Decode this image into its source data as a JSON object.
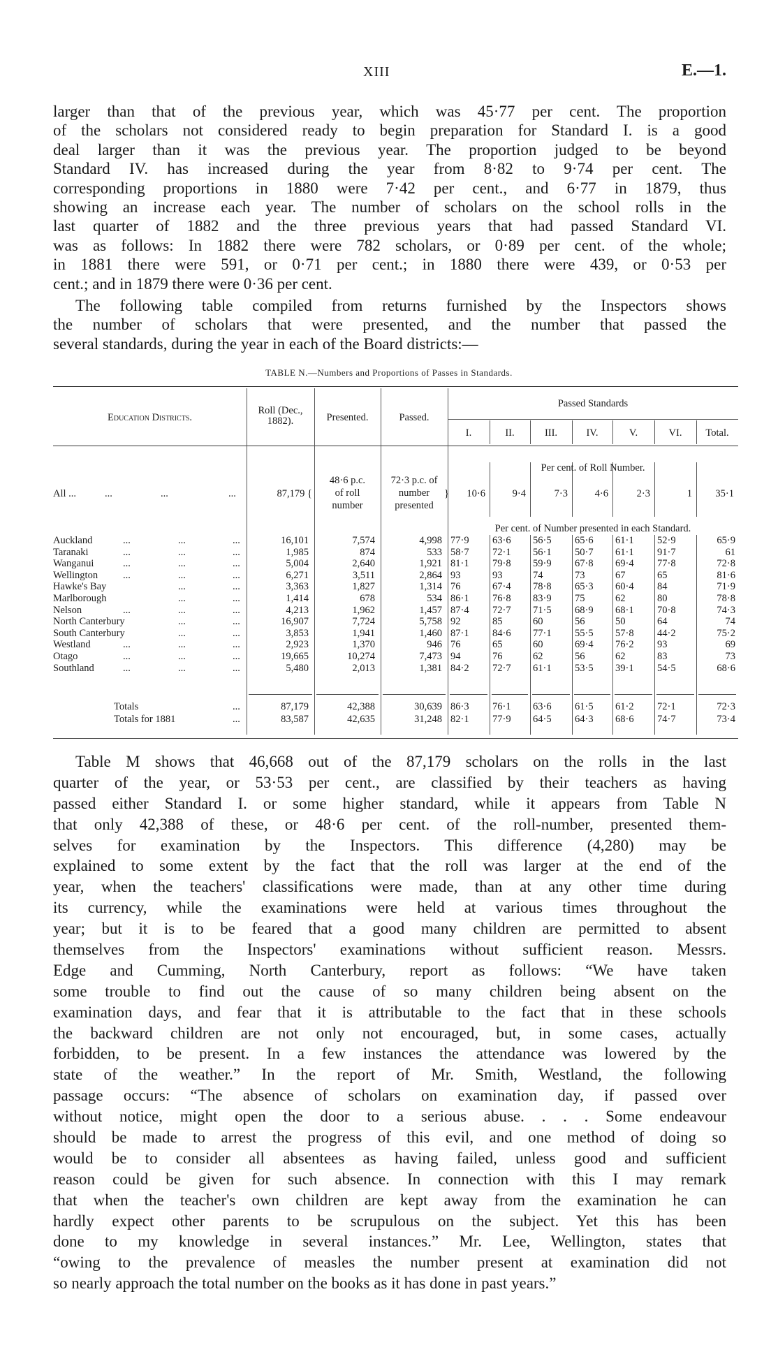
{
  "header": {
    "page_number": "XIII",
    "reference": "E.—1."
  },
  "paragraph1": [
    "larger than that of the previous year, which was 45·77 per cent. The proportion",
    "of the scholars not considered ready to begin preparation for Standard I. is a good",
    "deal larger than it was the previous year. The proportion judged to be beyond",
    "Standard IV. has increased during the year from 8·82 to 9·74 per cent. The",
    "corresponding proportions in 1880 were 7·42 per cent., and 6·77 in 1879, thus",
    "showing an increase each year. The number of scholars on the school rolls in the",
    "last quarter of 1882 and the three previous years that had passed Standard VI.",
    "was as follows: In 1882 there were 782 scholars, or 0·89 per cent. of the whole;",
    "in 1881 there were 591, or 0·71 per cent.; in 1880 there were 439, or 0·53 per",
    "cent.; and in 1879 there were 0·36 per cent."
  ],
  "paragraph2": [
    "The following table compiled from returns furnished by the Inspectors shows",
    "the number of scholars that were presented, and the number that passed the",
    "several standards, during the year in each of the Board districts:—"
  ],
  "table": {
    "caption": "TABLE N.—Numbers and Proportions of Passes in Standards.",
    "headers": {
      "district": "Education Districts.",
      "roll": [
        "Roll (Dec.,",
        "1882)."
      ],
      "presented": "Presented.",
      "passed": "Passed.",
      "passed_standards": "Passed Standards",
      "standards": [
        "I.",
        "II.",
        "III.",
        "IV.",
        "V.",
        "VI.",
        "Total."
      ]
    },
    "all_row": {
      "label": "All ...",
      "roll": "87,179",
      "presented": [
        "48·6 p.c.",
        "of roll",
        "number"
      ],
      "passed": [
        "72·3 p.c. of",
        "number",
        "presented"
      ],
      "note": "Per cent. of Roll Number.",
      "values": [
        "10·6",
        "9·4",
        "7·3",
        "4·6",
        "2·3",
        "1",
        "35·1"
      ]
    },
    "district_note": "Per cent. of Number presented in each Standard.",
    "rows": [
      {
        "district": "Auckland",
        "roll": "16,101",
        "presented": "7,574",
        "passed": "4,998",
        "values": [
          "77·9",
          "63·6",
          "56·5",
          "65·6",
          "61·1",
          "52·9",
          "65·9"
        ]
      },
      {
        "district": "Taranaki",
        "roll": "1,985",
        "presented": "874",
        "passed": "533",
        "values": [
          "58·7",
          "72·1",
          "56·1",
          "50·7",
          "61·1",
          "91·7",
          "61"
        ]
      },
      {
        "district": "Wanganui",
        "roll": "5,004",
        "presented": "2,640",
        "passed": "1,921",
        "values": [
          "81·1",
          "79·8",
          "59·9",
          "67·8",
          "69·4",
          "77·8",
          "72·8"
        ]
      },
      {
        "district": "Wellington",
        "roll": "6,271",
        "presented": "3,511",
        "passed": "2,864",
        "values": [
          "93",
          "93",
          "74",
          "73",
          "67",
          "65",
          "81·6"
        ]
      },
      {
        "district": "Hawke's Bay",
        "roll": "3,363",
        "presented": "1,827",
        "passed": "1,314",
        "values": [
          "76",
          "67·4",
          "78·8",
          "65·3",
          "60·4",
          "84",
          "71·9"
        ]
      },
      {
        "district": "Marlborough",
        "roll": "1,414",
        "presented": "678",
        "passed": "534",
        "values": [
          "86·1",
          "76·8",
          "83·9",
          "75",
          "62",
          "80",
          "78·8"
        ]
      },
      {
        "district": "Nelson",
        "roll": "4,213",
        "presented": "1,962",
        "passed": "1,457",
        "values": [
          "87·4",
          "72·7",
          "71·5",
          "68·9",
          "68·1",
          "70·8",
          "74·3"
        ]
      },
      {
        "district": "North Canterbury",
        "roll": "16,907",
        "presented": "7,724",
        "passed": "5,758",
        "values": [
          "92",
          "85",
          "60",
          "56",
          "50",
          "64",
          "74"
        ]
      },
      {
        "district": "South Canterbury",
        "roll": "3,853",
        "presented": "1,941",
        "passed": "1,460",
        "values": [
          "87·1",
          "84·6",
          "77·1",
          "55·5",
          "57·8",
          "44·2",
          "75·2"
        ]
      },
      {
        "district": "Westland",
        "roll": "2,923",
        "presented": "1,370",
        "passed": "946",
        "values": [
          "76",
          "65",
          "60",
          "69·4",
          "76·2",
          "93",
          "69"
        ]
      },
      {
        "district": "Otago",
        "roll": "19,665",
        "presented": "10,274",
        "passed": "7,473",
        "values": [
          "94",
          "76",
          "62",
          "56",
          "62",
          "83",
          "73"
        ]
      },
      {
        "district": "Southland",
        "roll": "5,480",
        "presented": "2,013",
        "passed": "1,381",
        "values": [
          "84·2",
          "72·7",
          "61·1",
          "53·5",
          "39·1",
          "54·5",
          "68·6"
        ]
      }
    ],
    "totals": [
      {
        "district": "Totals",
        "roll": "87,179",
        "presented": "42,388",
        "passed": "30,639",
        "values": [
          "86·3",
          "76·1",
          "63·6",
          "61·5",
          "61·2",
          "72·1",
          "72·3"
        ]
      },
      {
        "district": "Totals for 1881",
        "roll": "83,587",
        "presented": "42,635",
        "passed": "31,248",
        "values": [
          "82·1",
          "77·9",
          "64·5",
          "64·3",
          "68·6",
          "74·7",
          "73·4"
        ]
      }
    ]
  },
  "paragraph3": [
    "Table M shows that 46,668 out of the 87,179 scholars on the rolls in the last",
    "quarter of the year, or 53·53 per cent., are classified by their teachers as having",
    "passed either Standard I. or some higher standard, while it appears from Table N",
    "that only 42,388 of these, or 48·6 per cent. of the roll-number, presented them-",
    "selves for examination by the Inspectors. This difference (4,280) may be",
    "explained to some extent by the fact that the roll was larger at the end of the",
    "year, when the teachers' classifications were made, than at any other time during",
    "its currency, while the examinations were held at various times throughout the",
    "year; but it is to be feared that a good many children are permitted to absent",
    "themselves from the Inspectors' examinations without sufficient reason. Messrs.",
    "Edge and Cumming, North Canterbury, report as follows: “We have taken",
    "some trouble to find out the cause of so many children being absent on the",
    "examination days, and fear that it is attributable to the fact that in these schools",
    "the backward children are not only not encouraged, but, in some cases, actually",
    "forbidden, to be present. In a few instances the attendance was lowered by the",
    "state of the weather.” In the report of Mr. Smith, Westland, the following",
    "passage occurs: “The absence of scholars on examination day, if passed over",
    "without notice, might open the door to a serious abuse. . . . Some endeavour",
    "should be made to arrest the progress of this evil, and one method of doing so",
    "would be to consider all absentees as having failed, unless good and sufficient",
    "reason could be given for such absence. In connection with this I may remark",
    "that when the teacher's own children are kept away from the examination he can",
    "hardly expect other parents to be scrupulous on the subject. Yet this has been",
    "done to my knowledge in several instances.” Mr. Lee, Wellington, states that",
    "“owing to the prevalence of measles the number present at examination did not",
    "so nearly approach the total number on the books as it has done in past years.”"
  ]
}
